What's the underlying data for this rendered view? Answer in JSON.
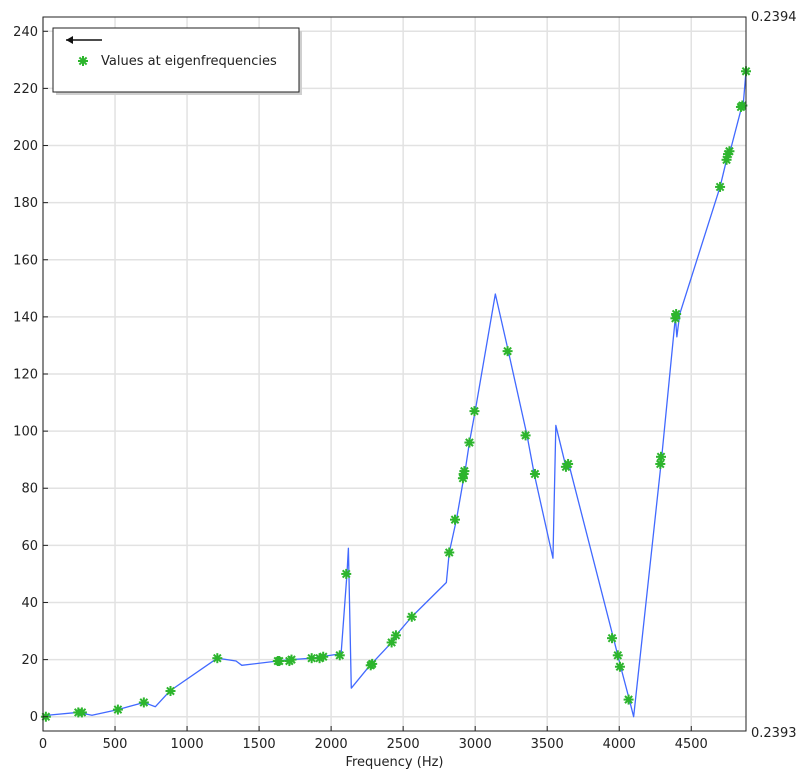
{
  "chart_data": {
    "type": "line",
    "xlabel": "Frequency (Hz)",
    "ylabel": "",
    "xlim": [
      0,
      4880
    ],
    "ylim": [
      -5,
      245
    ],
    "x_ticks": [
      0,
      500,
      1000,
      1500,
      2000,
      2500,
      3000,
      3500,
      4000,
      4500
    ],
    "x_tick_labels": [
      "0",
      "500",
      "1000",
      "1500",
      "2000",
      "2500",
      "3000",
      "3500",
      "4000",
      "4500"
    ],
    "y_ticks": [
      0,
      20,
      40,
      60,
      80,
      100,
      120,
      140,
      160,
      180,
      200,
      220,
      240
    ],
    "y_tick_labels": [
      "0",
      "20",
      "40",
      "60",
      "80",
      "100",
      "120",
      "140",
      "160",
      "180",
      "200",
      "220",
      "240"
    ],
    "right_axis": {
      "top_label": "0.2394",
      "bottom_label": "0.2393"
    },
    "grid": true,
    "legend_position": "top-left",
    "line_color": "#4169ff",
    "marker_color": "#2db52d",
    "series": [
      {
        "name": "",
        "kind": "line",
        "x": [
          0,
          30,
          240,
          270,
          340,
          520,
          700,
          780,
          880,
          1210,
          1340,
          1380,
          1630,
          1720,
          1870,
          1930,
          2060,
          2070,
          2110,
          2120,
          2140,
          2270,
          2290,
          2420,
          2450,
          2560,
          2800,
          2820,
          2870,
          2920,
          2925,
          2930,
          2960,
          3000,
          3140,
          3230,
          3360,
          3410,
          3540,
          3560,
          3630,
          3650,
          3960,
          3990,
          4010,
          4070,
          4100,
          4290,
          4295,
          4390,
          4400,
          4420,
          4700,
          4745,
          4760,
          4770,
          4850,
          4860,
          4880
        ],
        "y": [
          0,
          0.5,
          1.5,
          1.2,
          0.5,
          2.5,
          5,
          3.5,
          9,
          20.5,
          19.5,
          18,
          19.5,
          20,
          20.5,
          21,
          22,
          22.5,
          50,
          59,
          10,
          18,
          19,
          26,
          28.5,
          35,
          47,
          57.5,
          69,
          83.5,
          85.5,
          86,
          96,
          107,
          148,
          128,
          98.5,
          85,
          55.5,
          102,
          87.5,
          88.5,
          27.5,
          21.5,
          17.5,
          6,
          0,
          88.5,
          91,
          140,
          133,
          141,
          185.5,
          195,
          197,
          198,
          213.5,
          214,
          226
        ]
      },
      {
        "name": "Values at eigenfrequencies",
        "kind": "markers",
        "x": [
          20,
          245,
          270,
          520,
          700,
          885,
          1210,
          1630,
          1640,
          1710,
          1725,
          1865,
          1920,
          1945,
          2060,
          2105,
          2275,
          2285,
          2420,
          2450,
          2560,
          2820,
          2860,
          2915,
          2920,
          2925,
          2960,
          2995,
          3225,
          3350,
          3415,
          3630,
          3645,
          3950,
          3990,
          4005,
          4065,
          4285,
          4290,
          4390,
          4395,
          4700,
          4745,
          4755,
          4765,
          4845,
          4855,
          4880
        ],
        "y": [
          0,
          1.5,
          1.5,
          2.5,
          5,
          9,
          20.5,
          19.5,
          19.5,
          19.5,
          20,
          20.5,
          20.5,
          21,
          21.5,
          50,
          18,
          18.5,
          26,
          28.5,
          35,
          57.5,
          69,
          83.5,
          85,
          86,
          96,
          107,
          128,
          98.5,
          85,
          87.5,
          88.5,
          27.5,
          21.5,
          17.5,
          6,
          88.5,
          91,
          139.5,
          141,
          185.5,
          195,
          197,
          198,
          213.5,
          214,
          226
        ]
      }
    ]
  }
}
